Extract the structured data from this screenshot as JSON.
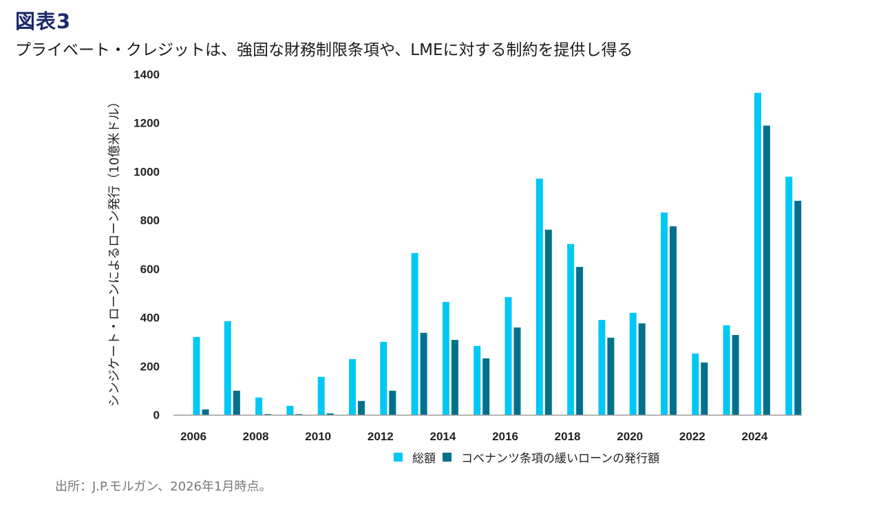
{
  "figure": {
    "label": "図表3",
    "title": "プライベート・クレジットは、強固な財務制限条項や、LMEに対する制約を提供し得る",
    "source": "出所：J.P.モルガン、2026年1月時点。"
  },
  "colors": {
    "total": "#00c8f5",
    "covenant_lite": "#00718c",
    "axis": "#999999"
  },
  "chart_data": {
    "type": "bar",
    "title": "プライベート・クレジットは、強固な財務制限条項や、LMEに対する制約を提供し得る",
    "xlabel": "",
    "ylabel": "シンジケート・ローンによるローン発行（10億米ドル）",
    "ylim": [
      0,
      1400
    ],
    "yticks": [
      0,
      200,
      400,
      600,
      800,
      1000,
      1200,
      1400
    ],
    "grid": false,
    "legend_position": "bottom",
    "categories": [
      "2006",
      "2007",
      "2008",
      "2009",
      "2010",
      "2011",
      "2012",
      "2013",
      "2014",
      "2015",
      "2016",
      "2017",
      "2018",
      "2019",
      "2020",
      "2021",
      "2022",
      "2023",
      "2024",
      "2025"
    ],
    "xtick_labels": [
      "2006",
      "2008",
      "2010",
      "2012",
      "2014",
      "2016",
      "2018",
      "2020",
      "2022",
      "2024"
    ],
    "series": [
      {
        "name": "総額",
        "values": [
          320,
          385,
          71,
          37,
          156,
          229,
          300,
          665,
          464,
          283,
          484,
          971,
          702,
          390,
          419,
          832,
          252,
          368,
          1324,
          979
        ]
      },
      {
        "name": "コベナンツ条項の緩いローンの発行額",
        "values": [
          22,
          99,
          3,
          3,
          6,
          57,
          99,
          337,
          308,
          232,
          359,
          761,
          608,
          317,
          376,
          775,
          215,
          328,
          1189,
          880
        ]
      }
    ]
  }
}
